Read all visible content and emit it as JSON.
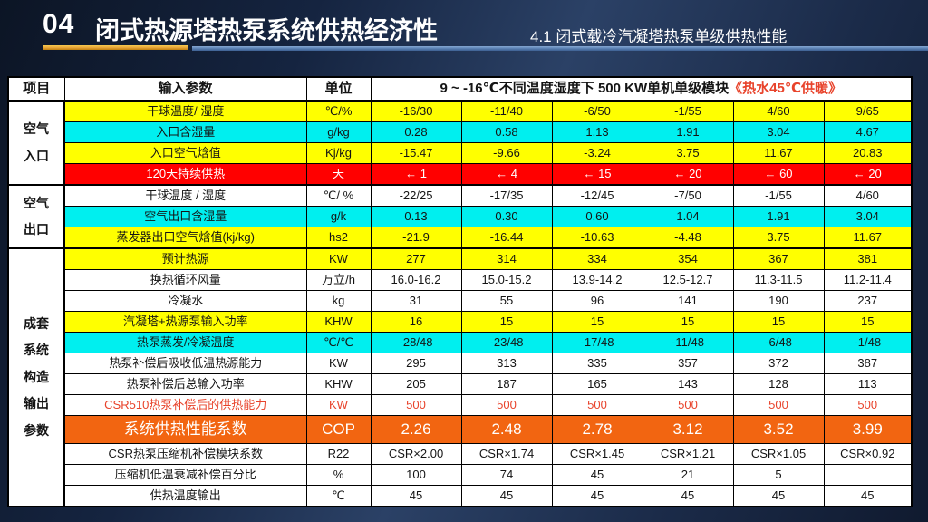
{
  "slide": {
    "number": "04",
    "title": "闭式热源塔热泵系统供热经济性",
    "subtitle": "4.1 闭式载冷汽凝塔热泵单级供热性能"
  },
  "colors": {
    "yellow": "#FFFF00",
    "cyan": "#00EFEF",
    "red": "#FF0000",
    "orange": "#F26511",
    "red-text": "#E8432B",
    "gold-bar": "#E9A63A",
    "blue-bar": "#5B82B5"
  },
  "table": {
    "header": {
      "item": "项目",
      "input": "输入参数",
      "unit": "单位",
      "span_black": "9 ~ -16℃不同温度湿度下 500 KW单机单级模块",
      "span_red": "《热水45℃供暖》"
    },
    "groups": [
      {
        "label": "空气\n入口",
        "start": 0,
        "rows": 4
      },
      {
        "label": "空气\n出口",
        "start": 4,
        "rows": 3
      },
      {
        "label": "成套\n系统\n构造\n输出\n参数",
        "start": 7,
        "rows": 12
      }
    ],
    "rows": [
      {
        "label": "干球温度/ 湿度",
        "unit": "℃/%",
        "bg": "yellow",
        "values": [
          "-16/30",
          "-11/40",
          "-6/50",
          "-1/55",
          "4/60",
          "9/65"
        ]
      },
      {
        "label": "入口含湿量",
        "unit": "g/kg",
        "bg": "cyan",
        "values": [
          "0.28",
          "0.58",
          "1.13",
          "1.91",
          "3.04",
          "4.67"
        ]
      },
      {
        "label": "入口空气焓值",
        "unit": "Kj/kg",
        "bg": "yellow",
        "values": [
          "-15.47",
          "-9.66",
          "-3.24",
          "3.75",
          "11.67",
          "20.83"
        ]
      },
      {
        "label": "120天持续供热",
        "unit": "天",
        "bg": "red",
        "values": [
          "← 1",
          "← 4",
          "← 15",
          "← 20",
          "← 60",
          "← 20"
        ]
      },
      {
        "label": "干球温度 / 湿度",
        "unit": "℃/ %",
        "bg": "white",
        "values": [
          "-22/25",
          "-17/35",
          "-12/45",
          "-7/50",
          "-1/55",
          "4/60"
        ]
      },
      {
        "label": "空气出口含湿量",
        "unit": "g/k",
        "bg": "cyan",
        "values": [
          "0.13",
          "0.30",
          "0.60",
          "1.04",
          "1.91",
          "3.04"
        ]
      },
      {
        "label": "蒸发器出口空气焓值(kj/kg)",
        "unit": "hs2",
        "bg": "yellow",
        "values": [
          "-21.9",
          "-16.44",
          "-10.63",
          "-4.48",
          "3.75",
          "11.67"
        ]
      },
      {
        "label": "预计热源",
        "unit": "KW",
        "bg": "yellow",
        "values": [
          "277",
          "314",
          "334",
          "354",
          "367",
          "381"
        ]
      },
      {
        "label": "换热循环风量",
        "unit": "万立/h",
        "bg": "white",
        "values": [
          "16.0-16.2",
          "15.0-15.2",
          "13.9-14.2",
          "12.5-12.7",
          "11.3-11.5",
          "11.2-11.4"
        ]
      },
      {
        "label": "冷凝水",
        "unit": "kg",
        "bg": "white",
        "values": [
          "31",
          "55",
          "96",
          "141",
          "190",
          "237"
        ]
      },
      {
        "label": "汽凝塔+热源泵输入功率",
        "unit": "KHW",
        "bg": "yellow",
        "values": [
          "16",
          "15",
          "15",
          "15",
          "15",
          "15"
        ]
      },
      {
        "label": "热泵蒸发/冷凝温度",
        "unit": "℃/℃",
        "bg": "cyan",
        "values": [
          "-28/48",
          "-23/48",
          "-17/48",
          "-11/48",
          "-6/48",
          "-1/48"
        ]
      },
      {
        "label": "热泵补偿后吸收低温热源能力",
        "unit": "KW",
        "bg": "white",
        "values": [
          "295",
          "313",
          "335",
          "357",
          "372",
          "387"
        ]
      },
      {
        "label": "热泵补偿后总输入功率",
        "unit": "KHW",
        "bg": "white",
        "values": [
          "205",
          "187",
          "165",
          "143",
          "128",
          "113"
        ]
      },
      {
        "label": "CSR510热泵补偿后的供热能力",
        "unit": "KW",
        "bg": "white",
        "text": "red",
        "values": [
          "500",
          "500",
          "500",
          "500",
          "500",
          "500"
        ]
      },
      {
        "label": "系统供热性能系数",
        "unit": "COP",
        "bg": "orange",
        "values": [
          "2.26",
          "2.48",
          "2.78",
          "3.12",
          "3.52",
          "3.99"
        ]
      },
      {
        "label": "CSR热泵压缩机补偿模块系数",
        "unit": "R22",
        "bg": "white",
        "values": [
          "CSR×2.00",
          "CSR×1.74",
          "CSR×1.45",
          "CSR×1.21",
          "CSR×1.05",
          "CSR×0.92"
        ]
      },
      {
        "label": "压缩机低温衰减补偿百分比",
        "unit": "%",
        "bg": "white",
        "values": [
          "100",
          "74",
          "45",
          "21",
          "5",
          ""
        ]
      },
      {
        "label": "供热温度输出",
        "unit": "℃",
        "bg": "white",
        "values": [
          "45",
          "45",
          "45",
          "45",
          "45",
          "45"
        ]
      }
    ]
  }
}
